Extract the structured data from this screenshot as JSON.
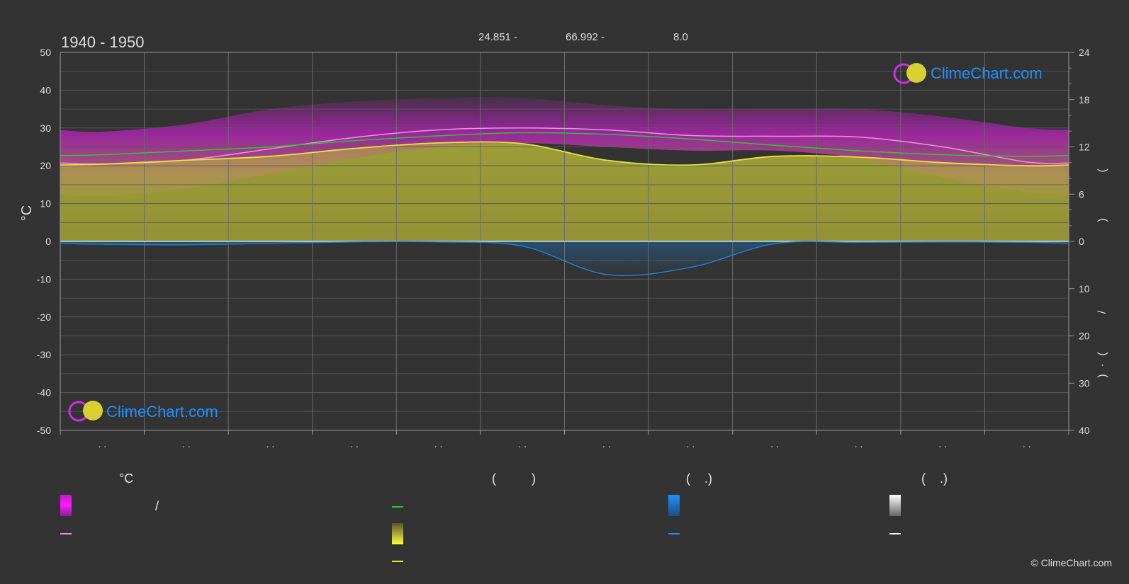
{
  "header": {
    "period": "1940 - 1950",
    "coords": [
      {
        "value": "24.851 -"
      },
      {
        "value": "66.992 -"
      },
      {
        "value": "8.0"
      }
    ]
  },
  "watermark": "ClimeChart.com",
  "copyright": "© ClimeChart.com",
  "colors": {
    "background": "#333333",
    "grid": "#5a5a5a",
    "magenta": "#e21ee6",
    "pink": "#ff9fc8",
    "lightpink": "#f48fe8",
    "green": "#2cc92c",
    "yellow": "#e6e637",
    "olive": "#8f8f38",
    "blue": "#1f7fd6",
    "white": "#ffffff",
    "brand_blue": "#1e90ff"
  },
  "chart_data": {
    "type": "area",
    "title": "1940 - 1950",
    "ylabel": "°C",
    "ylim": [
      -50,
      50
    ],
    "y_ticks": [
      "50",
      "40",
      "30",
      "20",
      "10",
      "0",
      "-10",
      "-20",
      "-30",
      "-40",
      "-50"
    ],
    "right_axis_top": {
      "ylim": [
        0,
        24
      ],
      "ticks": [
        "24",
        "18",
        "12",
        "6",
        "0"
      ]
    },
    "right_axis_bottom": {
      "ylim": [
        0,
        40
      ],
      "ticks": [
        "0",
        "10",
        "20",
        "30",
        "40"
      ]
    },
    "right_axis_labels": [
      "(",
      ")",
      "/",
      "(",
      "·",
      ")"
    ],
    "month_labels": [
      ". .",
      ". .",
      ". .",
      ". .",
      ". .",
      ". .",
      ". .",
      ". .",
      ". .",
      ". .",
      ". .",
      ". ."
    ],
    "x": [
      1,
      2,
      3,
      4,
      5,
      6,
      7,
      8,
      9,
      10,
      11,
      12
    ],
    "grid": true,
    "series": [
      {
        "key": "max_band_top",
        "values": [
          29,
          31,
          35,
          37,
          38,
          38,
          36,
          35,
          35,
          35,
          33,
          30
        ]
      },
      {
        "key": "max_band_bottom",
        "values": [
          12,
          14,
          18,
          22,
          25,
          26,
          25,
          24,
          24,
          22,
          17,
          13
        ]
      },
      {
        "key": "avg_max",
        "values": [
          20.5,
          21.5,
          24.5,
          27.5,
          29.5,
          30,
          29.5,
          28,
          27.8,
          27.6,
          25,
          21
        ]
      },
      {
        "key": "daylight",
        "values": [
          11.0,
          11.5,
          12.0,
          12.8,
          13.4,
          13.8,
          13.6,
          13.0,
          12.2,
          11.5,
          11.0,
          10.8
        ]
      },
      {
        "key": "sunshine",
        "values": [
          9.8,
          10.3,
          10.8,
          11.8,
          12.5,
          12.4,
          10.3,
          9.7,
          10.8,
          10.7,
          10.0,
          9.6
        ]
      },
      {
        "key": "rain",
        "values": [
          0.6,
          0.7,
          0.4,
          0.1,
          0.1,
          1.0,
          7.0,
          5.5,
          0.5,
          0.2,
          0.1,
          0.2
        ]
      }
    ]
  },
  "legend": {
    "col1": {
      "heading": "°C",
      "item1": "/"
    },
    "col2": {
      "heading": "(          )"
    },
    "col3": {
      "heading": "(    .)"
    },
    "col4": {
      "heading": "(    .)"
    }
  }
}
